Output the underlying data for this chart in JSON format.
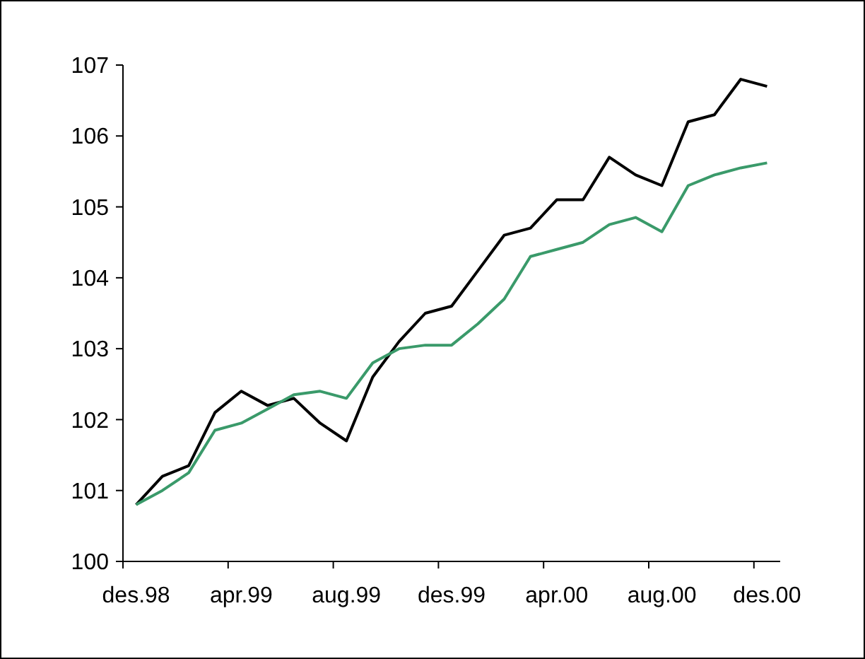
{
  "chart_data": {
    "type": "line",
    "categories": [
      "des.98",
      null,
      null,
      null,
      "apr.99",
      null,
      null,
      null,
      "aug.99",
      null,
      null,
      null,
      "des.99",
      null,
      null,
      null,
      "apr.00",
      null,
      null,
      null,
      "aug.00",
      null,
      null,
      null,
      "des.00"
    ],
    "series": [
      {
        "color": "#000000",
        "values": [
          100.8,
          101.2,
          101.35,
          102.1,
          102.4,
          102.2,
          102.3,
          101.95,
          101.7,
          102.6,
          103.1,
          103.5,
          103.6,
          104.1,
          104.6,
          104.7,
          105.1,
          105.1,
          105.7,
          105.45,
          105.3,
          106.2,
          106.3,
          106.8,
          106.7
        ]
      },
      {
        "color": "#3a9a6a",
        "values": [
          100.8,
          101.0,
          101.25,
          101.85,
          101.95,
          102.15,
          102.35,
          102.4,
          102.3,
          102.8,
          103.0,
          103.05,
          103.05,
          103.35,
          103.7,
          104.3,
          104.4,
          104.5,
          104.75,
          104.85,
          104.65,
          105.3,
          105.45,
          105.55,
          105.62
        ]
      }
    ],
    "ylim": [
      100,
      107
    ],
    "yticks": [
      100,
      101,
      102,
      103,
      104,
      105,
      106,
      107
    ],
    "grid": false,
    "legend": false,
    "marker": "none",
    "line_style": "solid"
  }
}
